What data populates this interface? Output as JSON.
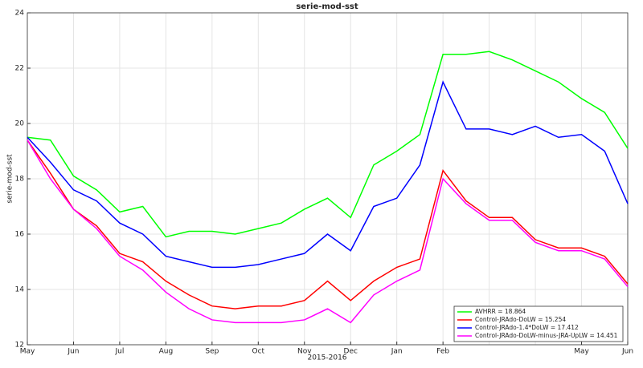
{
  "chart_data": {
    "type": "line",
    "title": "serie-mod-sst",
    "xlabel": "2015-2016",
    "ylabel": "serie-mod-sst",
    "categories": [
      "May",
      null,
      "Jun",
      null,
      "Jul",
      null,
      "Aug",
      null,
      "Sep",
      null,
      "Oct",
      null,
      "Nov",
      null,
      "Dec",
      null,
      "Jan",
      null,
      "Feb",
      null,
      null,
      null,
      null,
      null,
      "May",
      null,
      "Jun"
    ],
    "series": [
      {
        "name": "AVHRR = 18.864",
        "color": "#00ff00",
        "values": [
          19.5,
          19.4,
          18.1,
          17.6,
          16.8,
          17.0,
          15.9,
          16.1,
          16.1,
          16.0,
          16.2,
          16.4,
          16.9,
          17.3,
          16.6,
          18.5,
          19.0,
          19.6,
          22.5,
          22.5,
          22.6,
          22.3,
          21.9,
          21.5,
          20.9,
          20.4,
          19.1
        ]
      },
      {
        "name": "Control-JRAdo-DoLW = 15.254",
        "color": "#ff0000",
        "values": [
          19.4,
          18.2,
          16.9,
          16.3,
          15.3,
          15.0,
          14.3,
          13.8,
          13.4,
          13.3,
          13.4,
          13.4,
          13.6,
          14.3,
          13.6,
          14.3,
          14.8,
          15.1,
          18.3,
          17.2,
          16.6,
          16.6,
          15.8,
          15.5,
          15.5,
          15.2,
          14.2
        ]
      },
      {
        "name": "Control-JRAdo-1.4*DoLW = 17.412",
        "color": "#0000ff",
        "values": [
          19.5,
          18.6,
          17.6,
          17.2,
          16.4,
          16.0,
          15.2,
          15.0,
          14.8,
          14.8,
          14.9,
          15.1,
          15.3,
          16.0,
          15.4,
          17.0,
          17.3,
          18.5,
          21.5,
          19.8,
          19.8,
          19.6,
          19.9,
          19.5,
          19.6,
          19.0,
          17.1
        ]
      },
      {
        "name": "Control-JRAdo-DoLW-minus-JRA-UpLW = 14.451",
        "color": "#ff00ff",
        "values": [
          19.4,
          18.0,
          16.9,
          16.2,
          15.2,
          14.7,
          13.9,
          13.3,
          12.9,
          12.8,
          12.8,
          12.8,
          12.9,
          13.3,
          12.8,
          13.8,
          14.3,
          14.7,
          18.0,
          17.1,
          16.5,
          16.5,
          15.7,
          15.4,
          15.4,
          15.1,
          14.1
        ]
      }
    ],
    "ylim": [
      12,
      24
    ],
    "yticks": [
      12,
      14,
      16,
      18,
      20,
      22,
      24
    ],
    "grid": true,
    "legend": "lower right"
  }
}
